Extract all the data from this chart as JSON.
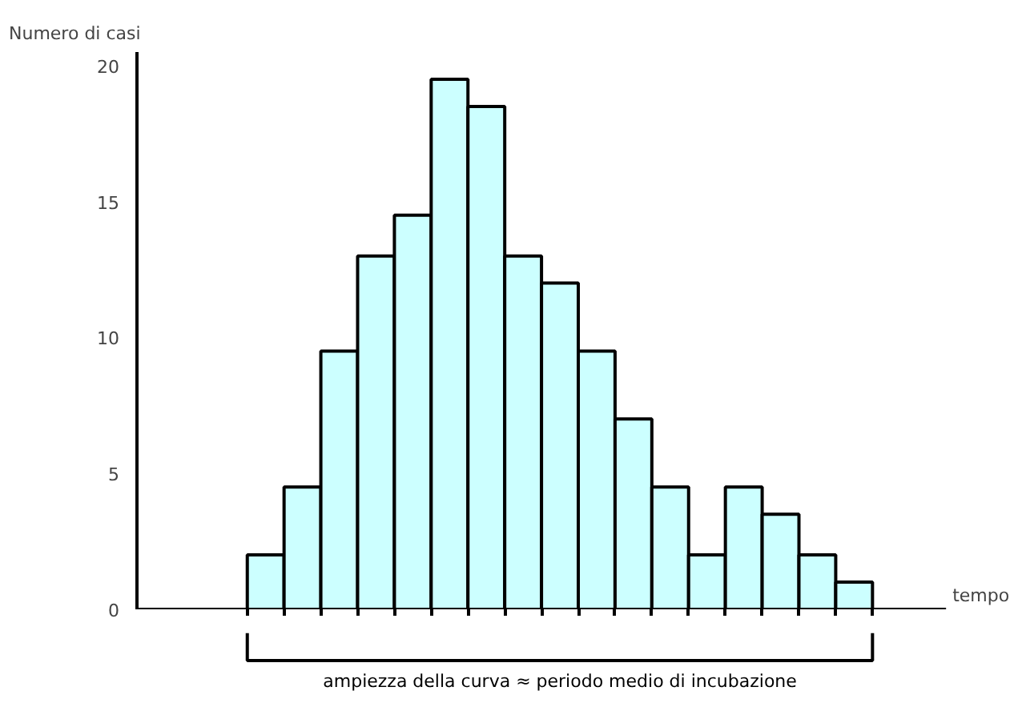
{
  "chart_data": {
    "type": "bar",
    "ylabel": "Numero di casi",
    "xlabel": "tempo",
    "categories": [
      null,
      null,
      null,
      null,
      null,
      null,
      null,
      null,
      null,
      null,
      null,
      null,
      null,
      null,
      null,
      null,
      null,
      null,
      null,
      null,
      null,
      null
    ],
    "values": [
      null,
      null,
      null,
      2,
      4.5,
      9.5,
      13,
      14.5,
      19.5,
      18.5,
      13,
      12,
      9.5,
      7,
      4.5,
      2,
      4.5,
      3.5,
      2,
      1,
      null,
      null
    ],
    "color": "#ccffff",
    "ylim": [
      0,
      20.5
    ],
    "yticks": [
      0,
      5,
      10,
      15,
      20
    ],
    "grid": false,
    "tick_labels": "y",
    "annotations": [
      "ampiezza della curva ≈ periodo medio di incubazione"
    ]
  }
}
